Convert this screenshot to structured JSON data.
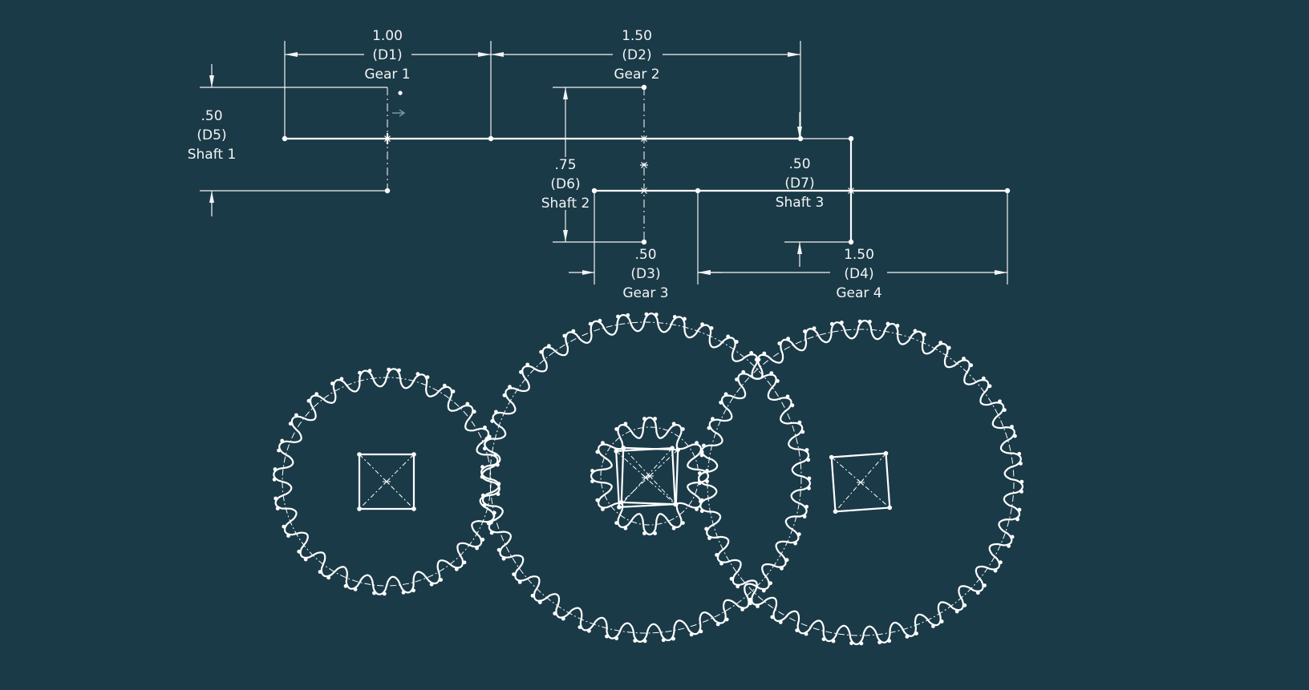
{
  "colors": {
    "background": "#1b3a47",
    "sketch": "#ffffff",
    "dimension": "#f2f4f5",
    "faint": "#7d97a2"
  },
  "dimensions": [
    {
      "id": "d1",
      "value": "1.00",
      "code": "(D1)",
      "label": "Gear 1"
    },
    {
      "id": "d2",
      "value": "1.50",
      "code": "(D2)",
      "label": "Gear 2"
    },
    {
      "id": "d5",
      "value": ".50",
      "code": "(D5)",
      "label": "Shaft 1"
    },
    {
      "id": "d6",
      "value": ".75",
      "code": "(D6)",
      "label": "Shaft 2"
    },
    {
      "id": "d7",
      "value": ".50",
      "code": "(D7)",
      "label": "Shaft 3"
    },
    {
      "id": "d3",
      "value": ".50",
      "code": "(D3)",
      "label": "Gear 3"
    },
    {
      "id": "d4",
      "value": "1.50",
      "code": "(D4)",
      "label": "Gear 4"
    }
  ],
  "gears": [
    {
      "id": "gear-1",
      "teeth": 24
    },
    {
      "id": "gear-2",
      "teeth": 36
    },
    {
      "id": "gear-3",
      "teeth": 12
    },
    {
      "id": "gear-4",
      "teeth": 36
    }
  ]
}
